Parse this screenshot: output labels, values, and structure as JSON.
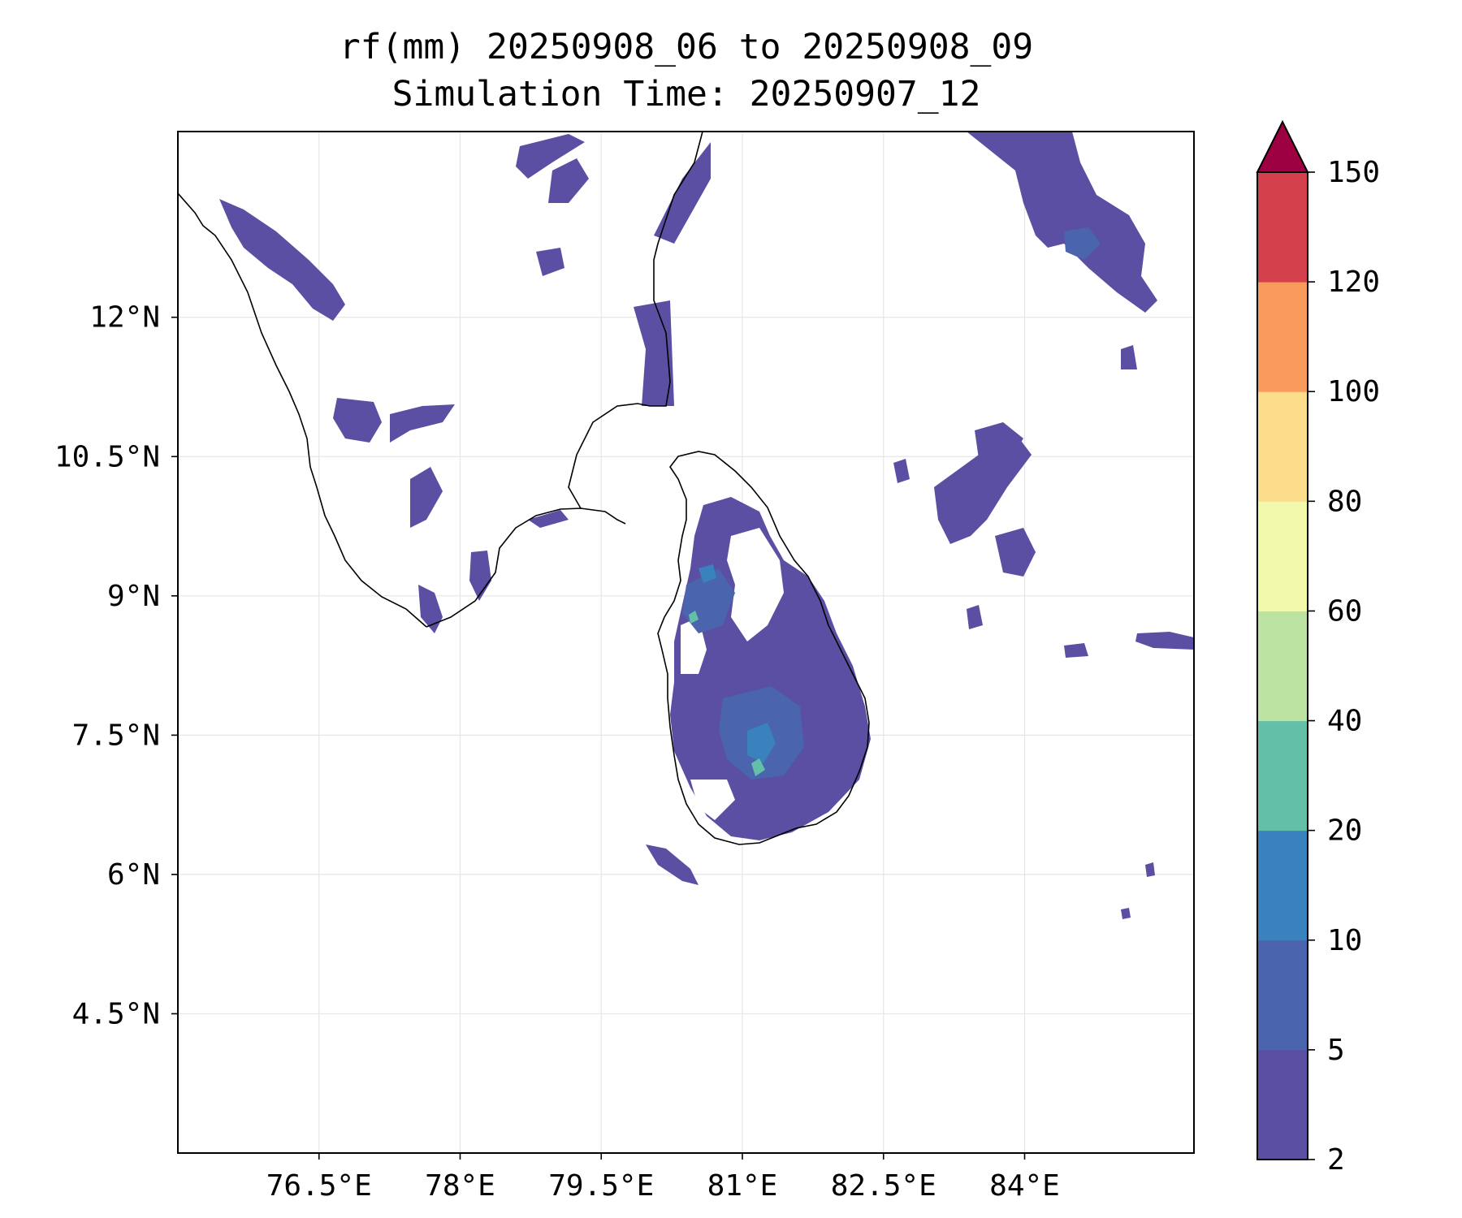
{
  "title": {
    "line1": "rf(mm) 20250908_06 to 20250908_09",
    "line2": "Simulation Time: 20250907_12"
  },
  "map": {
    "lon_range": [
      75.0,
      85.8
    ],
    "lat_range": [
      3.0,
      14.0
    ],
    "x_ticks": [
      "76.5°E",
      "78°E",
      "79.5°E",
      "81°E",
      "82.5°E",
      "84°E"
    ],
    "x_tick_values": [
      76.5,
      78,
      79.5,
      81,
      82.5,
      84
    ],
    "y_ticks": [
      "12°N",
      "10.5°N",
      "9°N",
      "7.5°N",
      "6°N",
      "4.5°N"
    ],
    "y_tick_values": [
      12,
      10.5,
      9,
      7.5,
      6,
      4.5
    ],
    "gridlines": true,
    "coastline_color": "#000000",
    "ocean_color": "#ffffff"
  },
  "colorbar": {
    "levels": [
      "2",
      "5",
      "10",
      "20",
      "40",
      "60",
      "80",
      "100",
      "120",
      "150"
    ],
    "colors": [
      "#5a4fa2",
      "#4a64ad",
      "#3a82bd",
      "#64bfa9",
      "#bde3a2",
      "#f2f9aa",
      "#fbdd8b",
      "#f89b5b",
      "#d5404d"
    ],
    "extend_max_color": "#9e0142",
    "orientation": "vertical",
    "placement": "right"
  }
}
